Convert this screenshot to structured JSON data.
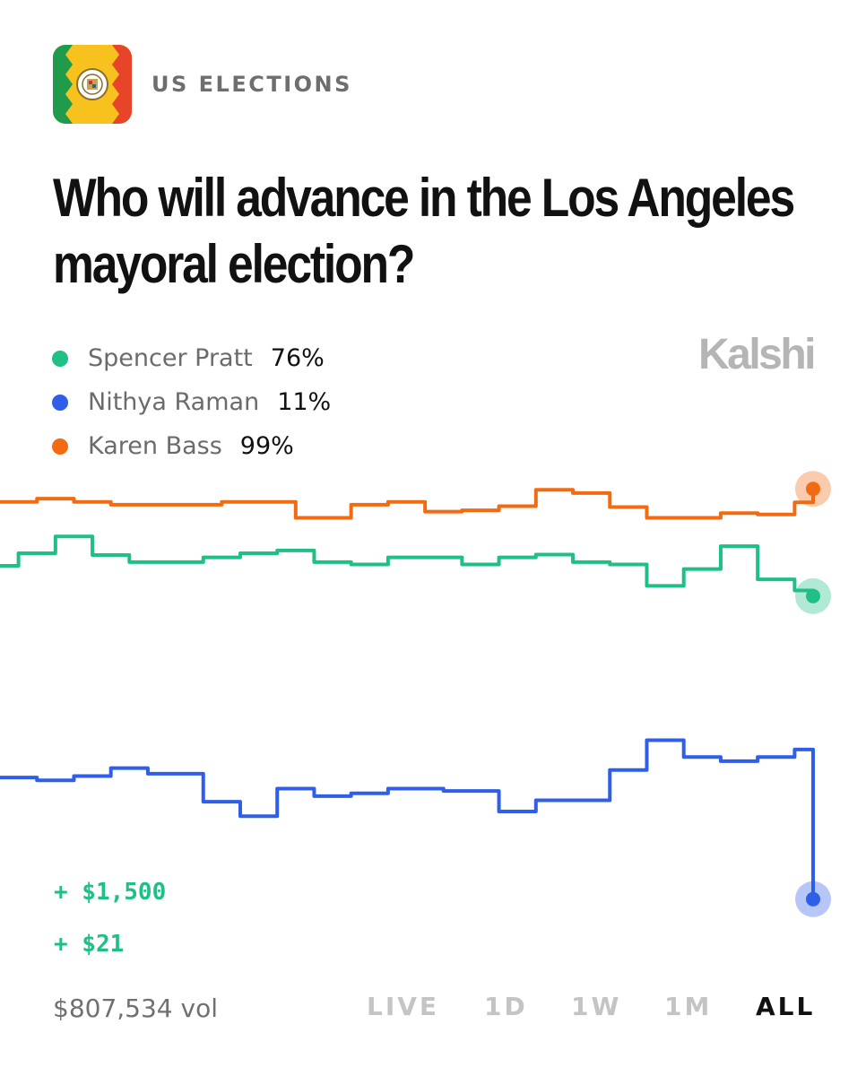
{
  "header": {
    "category": "US ELECTIONS",
    "title": "Who will advance in the Los Angeles mayoral election?",
    "brand": "Kalshi"
  },
  "legend": [
    {
      "name": "Spencer Pratt",
      "value": "76%",
      "color": "#1fbf86"
    },
    {
      "name": "Nithya Raman",
      "value": "11%",
      "color": "#2f5ee8"
    },
    {
      "name": "Karen Bass",
      "value": "99%",
      "color": "#f26b12"
    }
  ],
  "trades": [
    "+ $1,500",
    "+ $21"
  ],
  "footer": {
    "volume": "$807,534 vol",
    "ranges": [
      "LIVE",
      "1D",
      "1W",
      "1M",
      "ALL"
    ],
    "active_range": "ALL"
  },
  "colors": {
    "green": "#1fbf86",
    "blue": "#2f5ee8",
    "orange": "#f26b12",
    "muted": "#6b6b6b",
    "tab_inactive": "#c4c4c4"
  },
  "chart_data": {
    "type": "line",
    "step": true,
    "grid": false,
    "x": [
      0,
      1,
      2,
      3,
      4,
      5,
      6,
      7,
      8,
      9,
      10,
      11,
      12,
      13,
      14,
      15,
      16,
      17,
      18,
      19,
      20,
      21,
      22,
      23,
      24,
      25,
      26,
      27,
      28,
      29,
      30,
      31,
      32,
      33,
      34,
      35,
      36,
      37,
      38,
      39,
      40,
      41,
      42,
      43,
      44
    ],
    "series": [
      {
        "name": "Karen Bass",
        "color": "#f26b12",
        "values": [
          96.2,
          96.2,
          96.9,
          96.9,
          96.2,
          96.2,
          95.6,
          95.6,
          95.6,
          95.6,
          95.6,
          95.6,
          96.2,
          96.2,
          96.2,
          96.2,
          92.8,
          92.8,
          92.8,
          95.6,
          95.6,
          96.2,
          96.2,
          94.1,
          94.1,
          94.4,
          94.4,
          95.3,
          95.3,
          98.8,
          98.8,
          98.1,
          98.1,
          95.1,
          95.1,
          92.8,
          92.8,
          92.8,
          92.8,
          93.8,
          93.8,
          93.5,
          93.5,
          96.1,
          99.0
        ]
      },
      {
        "name": "Spencer Pratt",
        "color": "#1fbf86",
        "values": [
          82.5,
          85.2,
          85.2,
          88.8,
          88.8,
          84.8,
          84.8,
          83.3,
          83.3,
          83.3,
          83.3,
          84.3,
          84.3,
          85.2,
          85.2,
          85.8,
          85.8,
          83.3,
          83.3,
          82.8,
          82.8,
          84.3,
          84.3,
          84.3,
          84.3,
          82.8,
          82.8,
          84.3,
          84.3,
          84.9,
          84.9,
          83.3,
          83.3,
          82.8,
          82.8,
          78.2,
          78.2,
          81.8,
          81.8,
          86.7,
          86.7,
          79.6,
          79.6,
          77.2,
          76.0
        ]
      },
      {
        "name": "Nithya Raman",
        "color": "#2f5ee8",
        "values": [
          37.1,
          37.1,
          36.5,
          36.5,
          37.4,
          37.4,
          39.1,
          39.1,
          37.9,
          37.9,
          37.9,
          31.9,
          31.9,
          28.8,
          28.8,
          34.7,
          34.7,
          33.1,
          33.1,
          33.7,
          33.7,
          34.7,
          34.7,
          34.7,
          34.2,
          34.2,
          34.2,
          29.8,
          29.8,
          32.2,
          32.2,
          32.2,
          32.2,
          38.7,
          38.7,
          45.1,
          45.1,
          41.5,
          41.5,
          40.6,
          40.6,
          41.5,
          41.5,
          43.1,
          11.0
        ]
      }
    ]
  }
}
